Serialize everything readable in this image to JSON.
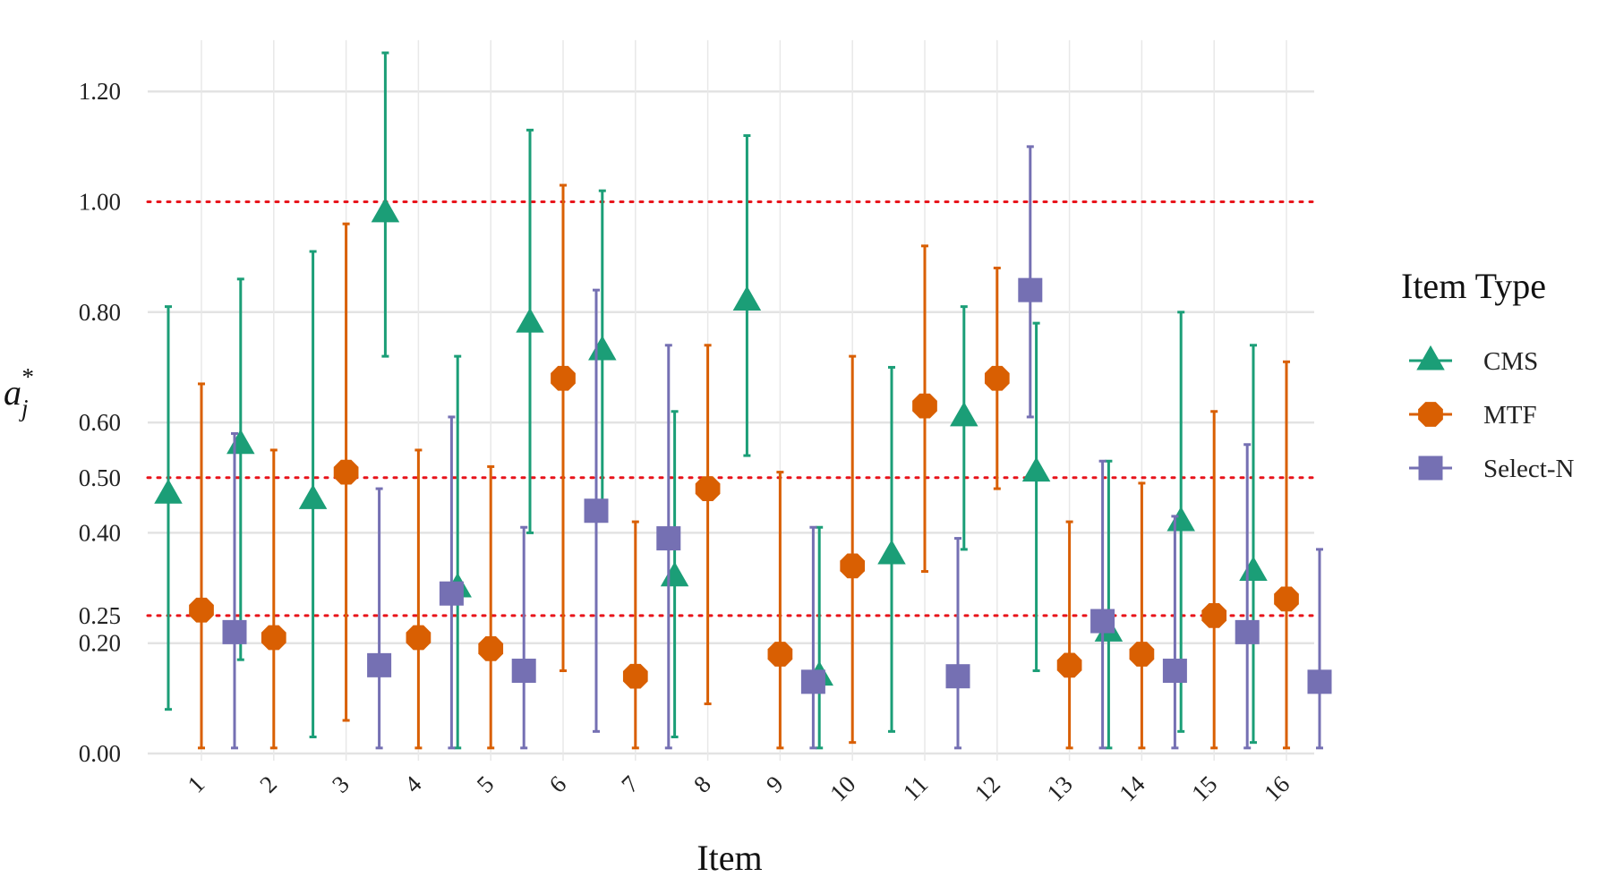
{
  "chart_data": {
    "type": "scatter",
    "xlabel": "Item",
    "ylabel": "a",
    "ylabel_sub": "j",
    "ylabel_sup": "*",
    "ylim": [
      0,
      1.28
    ],
    "yticks": [
      {
        "value": 0.0,
        "label": "0.00",
        "color": "#222222"
      },
      {
        "value": 0.2,
        "label": "0.20",
        "color": "#222222"
      },
      {
        "value": 0.25,
        "label": "0.25",
        "color": "#e8141b"
      },
      {
        "value": 0.4,
        "label": "0.40",
        "color": "#222222"
      },
      {
        "value": 0.5,
        "label": "0.50",
        "color": "#e8141b"
      },
      {
        "value": 0.6,
        "label": "0.60",
        "color": "#222222"
      },
      {
        "value": 0.8,
        "label": "0.80",
        "color": "#222222"
      },
      {
        "value": 1.0,
        "label": "1.00",
        "color": "#e8141b"
      },
      {
        "value": 1.2,
        "label": "1.20",
        "color": "#222222"
      }
    ],
    "reference_lines": [
      0.25,
      0.5,
      1.0
    ],
    "reference_color": "#e8141b",
    "grid": true,
    "categories": [
      "1",
      "2",
      "3",
      "4",
      "5",
      "6",
      "7",
      "8",
      "9",
      "10",
      "11",
      "12",
      "13",
      "14",
      "15",
      "16"
    ],
    "legend": {
      "title": "Item Type",
      "position": "right"
    },
    "series": [
      {
        "name": "CMS",
        "marker": "triangle",
        "color": "#1b9e77",
        "values": [
          0.47,
          0.56,
          0.46,
          0.98,
          0.3,
          0.78,
          0.73,
          0.32,
          0.82,
          0.14,
          0.36,
          0.61,
          0.51,
          0.22,
          0.42,
          0.33
        ],
        "lower": [
          0.08,
          0.17,
          0.03,
          0.72,
          0.01,
          0.4,
          0.43,
          0.03,
          0.54,
          0.01,
          0.04,
          0.37,
          0.15,
          0.01,
          0.04,
          0.02
        ],
        "upper": [
          0.81,
          0.86,
          0.91,
          1.27,
          0.72,
          1.13,
          1.02,
          0.62,
          1.12,
          0.41,
          0.7,
          0.81,
          0.78,
          0.53,
          0.8,
          0.74
        ]
      },
      {
        "name": "MTF",
        "marker": "octagon",
        "color": "#d95f02",
        "values": [
          0.26,
          0.21,
          0.51,
          0.21,
          0.19,
          0.68,
          0.14,
          0.48,
          0.18,
          0.34,
          0.63,
          0.68,
          0.16,
          0.18,
          0.25,
          0.28
        ],
        "lower": [
          0.01,
          0.01,
          0.06,
          0.01,
          0.01,
          0.15,
          0.01,
          0.09,
          0.01,
          0.02,
          0.33,
          0.48,
          0.01,
          0.01,
          0.01,
          0.01
        ],
        "upper": [
          0.67,
          0.55,
          0.96,
          0.55,
          0.52,
          1.03,
          0.42,
          0.74,
          0.51,
          0.72,
          0.92,
          0.88,
          0.42,
          0.49,
          0.62,
          0.71
        ]
      },
      {
        "name": "Select-N",
        "marker": "square",
        "color": "#7570b3",
        "values": [
          0.22,
          null,
          0.16,
          0.29,
          0.15,
          0.44,
          0.39,
          null,
          0.13,
          null,
          0.14,
          0.84,
          0.24,
          0.15,
          0.22,
          0.13
        ],
        "lower": [
          0.01,
          null,
          0.01,
          0.01,
          0.01,
          0.04,
          0.01,
          null,
          0.01,
          null,
          0.01,
          0.61,
          0.01,
          0.01,
          0.01,
          0.01
        ],
        "upper": [
          0.58,
          null,
          0.48,
          0.61,
          0.41,
          0.84,
          0.74,
          null,
          0.41,
          null,
          0.39,
          1.1,
          0.53,
          0.43,
          0.56,
          0.37
        ]
      }
    ]
  }
}
